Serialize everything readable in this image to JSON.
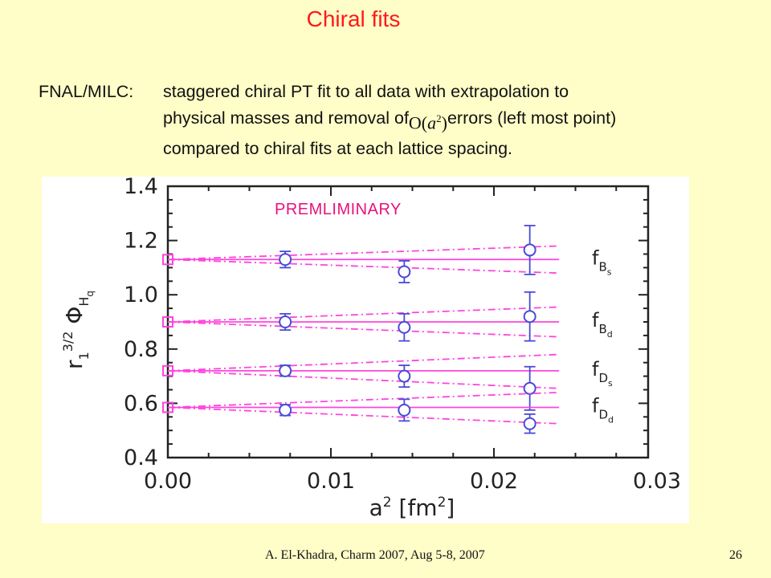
{
  "slide": {
    "title": "Chiral fits",
    "desc_label": "FNAL/MILC:",
    "desc_line1": "staggered chiral PT fit to all data with extrapolation to",
    "desc_line2_pre": "physical masses and removal of ",
    "desc_math_O": "O(",
    "desc_math_a": "a",
    "desc_math_exp": "2",
    "desc_math_close": ")",
    "desc_line2_post": " errors (left most point)",
    "desc_line3": "compared to chiral fits at each lattice spacing.",
    "footer": "A. El-Khadra, Charm 2007, Aug 5-8, 2007",
    "page_number": "26"
  },
  "chart_data": {
    "type": "scatter",
    "annotation": "PREMLIMINARY",
    "xlabel": "a² [fm²]",
    "ylabel": "r₁^{3/2} Φ_{H_q}",
    "xlim": [
      0.0,
      0.03
    ],
    "ylim": [
      0.4,
      1.4
    ],
    "x_ticks": [
      "0.00",
      "0.01",
      "0.02",
      "0.03"
    ],
    "y_ticks": [
      "0.4",
      "0.6",
      "0.8",
      "1.0",
      "1.2",
      "1.4"
    ],
    "fit_line_end_x": 0.024,
    "colors": {
      "points": "#4a4ad8",
      "fits": "#ff44dd",
      "extrapolated": "#ff44dd",
      "axes": "#222222"
    },
    "series": [
      {
        "name": "f_{B_s}",
        "label_main": "f",
        "label_sub": "B",
        "label_subsub": "s",
        "extrapolated": {
          "x": 0.0,
          "y": 1.13
        },
        "points": [
          {
            "x": 0.0072,
            "y": 1.13,
            "err": 0.03
          },
          {
            "x": 0.0145,
            "y": 1.085,
            "err": 0.04
          },
          {
            "x": 0.0222,
            "y": 1.165,
            "err": 0.09
          }
        ],
        "fit_y": 1.13,
        "band_hi_end": 1.18,
        "band_lo_end": 1.08
      },
      {
        "name": "f_{B_d}",
        "label_main": "f",
        "label_sub": "B",
        "label_subsub": "d",
        "extrapolated": {
          "x": 0.0,
          "y": 0.9
        },
        "points": [
          {
            "x": 0.0072,
            "y": 0.9,
            "err": 0.03
          },
          {
            "x": 0.0145,
            "y": 0.88,
            "err": 0.05
          },
          {
            "x": 0.0222,
            "y": 0.92,
            "err": 0.09
          }
        ],
        "fit_y": 0.9,
        "band_hi_end": 0.955,
        "band_lo_end": 0.845
      },
      {
        "name": "f_{D_s}",
        "label_main": "f",
        "label_sub": "D",
        "label_subsub": "s",
        "extrapolated": {
          "x": 0.0,
          "y": 0.72
        },
        "points": [
          {
            "x": 0.0072,
            "y": 0.72,
            "err": 0.02
          },
          {
            "x": 0.0145,
            "y": 0.7,
            "err": 0.04
          },
          {
            "x": 0.0222,
            "y": 0.655,
            "err": 0.08
          }
        ],
        "fit_y": 0.72,
        "band_hi_end": 0.78,
        "band_lo_end": 0.655
      },
      {
        "name": "f_{D_d}",
        "label_main": "f",
        "label_sub": "D",
        "label_subsub": "d",
        "extrapolated": {
          "x": 0.0,
          "y": 0.585
        },
        "points": [
          {
            "x": 0.0072,
            "y": 0.575,
            "err": 0.02
          },
          {
            "x": 0.0145,
            "y": 0.575,
            "err": 0.04
          },
          {
            "x": 0.0222,
            "y": 0.525,
            "err": 0.035
          }
        ],
        "fit_y": 0.585,
        "band_hi_end": 0.64,
        "band_lo_end": 0.525
      }
    ]
  }
}
